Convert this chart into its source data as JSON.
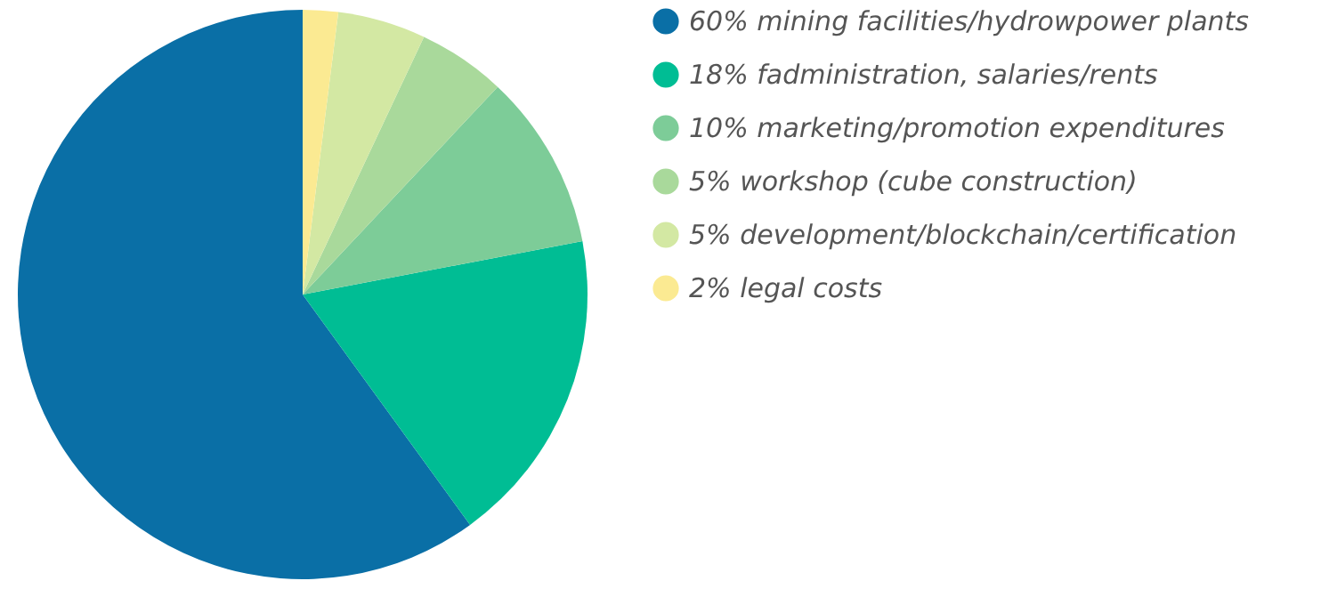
{
  "chart_data": {
    "type": "pie",
    "categories": [
      "60% mining facilities/hydrowpower plants",
      "18% fadministration, salaries/rents",
      "10% marketing/promotion expenditures",
      "5% workshop (cube construction)",
      "5% development/blockchain/certification",
      "2% legal costs"
    ],
    "values": [
      60,
      18,
      10,
      5,
      5,
      2
    ],
    "colors": [
      "#0a6fa6",
      "#00bd94",
      "#7dcc98",
      "#a9d99b",
      "#d3e8a3",
      "#fbea92"
    ],
    "legend": "right"
  }
}
